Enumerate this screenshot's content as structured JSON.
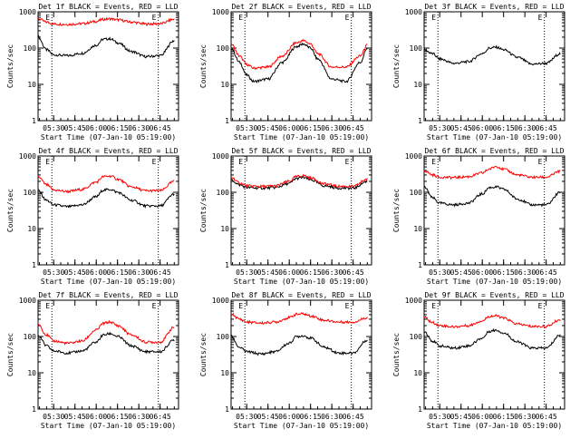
{
  "chart_data": {
    "type": "line",
    "x_ticks": [
      "05:30",
      "05:45",
      "06:00",
      "06:15",
      "06:30",
      "06:45"
    ],
    "ylabel": "Counts/sec",
    "xlabel": "Start Time (07-Jan-10 05:19:00)",
    "yscale": "log",
    "ylim": [
      1,
      1000
    ],
    "y_ticks": [
      "1",
      "10",
      "100",
      "1000"
    ],
    "colors": {
      "events": "#000000",
      "lld": "#ff0000"
    },
    "panels": [
      {
        "title": "Det 1f BLACK = Events, RED = LLD",
        "flags": [
          "E",
          "E"
        ],
        "series": [
          {
            "color": "#000000",
            "x": [
              "05:19",
              "05:25",
              "05:30",
              "05:40",
              "05:50",
              "06:00",
              "06:05",
              "06:10",
              "06:15",
              "06:25",
              "06:35",
              "06:45",
              "06:55"
            ],
            "y": [
              200,
              90,
              65,
              62,
              72,
              120,
              175,
              180,
              140,
              80,
              58,
              62,
              160
            ]
          },
          {
            "color": "#ff0000",
            "x": [
              "05:19",
              "05:25",
              "05:30",
              "05:40",
              "05:50",
              "06:00",
              "06:05",
              "06:10",
              "06:15",
              "06:25",
              "06:35",
              "06:45",
              "06:55"
            ],
            "y": [
              650,
              520,
              460,
              450,
              470,
              540,
              620,
              640,
              600,
              520,
              460,
              470,
              620
            ]
          }
        ]
      },
      {
        "title": "Det 2f BLACK = Events, RED = LLD",
        "flags": [
          "E",
          "E"
        ],
        "series": [
          {
            "color": "#000000",
            "x": [
              "05:19",
              "05:25",
              "05:30",
              "05:35",
              "05:45",
              "05:55",
              "06:05",
              "06:10",
              "06:15",
              "06:20",
              "06:30",
              "06:40",
              "06:50",
              "06:55"
            ],
            "y": [
              100,
              40,
              18,
              12,
              14,
              40,
              110,
              130,
              100,
              50,
              14,
              12,
              40,
              100
            ]
          },
          {
            "color": "#ff0000",
            "x": [
              "05:19",
              "05:25",
              "05:30",
              "05:35",
              "05:45",
              "05:55",
              "06:05",
              "06:10",
              "06:15",
              "06:20",
              "06:30",
              "06:40",
              "06:50",
              "06:55"
            ],
            "y": [
              130,
              60,
              35,
              28,
              30,
              60,
              140,
              160,
              130,
              70,
              30,
              30,
              60,
              120
            ]
          }
        ]
      },
      {
        "title": "Det 3f BLACK = Events, RED = LLD",
        "flags": [
          "E",
          "E"
        ],
        "series": [
          {
            "color": "#000000",
            "x": [
              "05:19",
              "05:25",
              "05:30",
              "05:40",
              "05:50",
              "06:00",
              "06:05",
              "06:10",
              "06:15",
              "06:25",
              "06:35",
              "06:45",
              "06:55"
            ],
            "y": [
              90,
              70,
              50,
              38,
              42,
              70,
              100,
              105,
              90,
              55,
              36,
              38,
              70
            ]
          }
        ]
      },
      {
        "title": "Det 4f BLACK = Events, RED = LLD",
        "flags": [
          "E",
          "E"
        ],
        "series": [
          {
            "color": "#000000",
            "x": [
              "05:19",
              "05:25",
              "05:30",
              "05:40",
              "05:50",
              "06:00",
              "06:05",
              "06:10",
              "06:15",
              "06:25",
              "06:35",
              "06:45",
              "06:55"
            ],
            "y": [
              110,
              60,
              45,
              40,
              45,
              75,
              115,
              120,
              100,
              60,
              42,
              42,
              90
            ]
          },
          {
            "color": "#ff0000",
            "x": [
              "05:19",
              "05:25",
              "05:30",
              "05:40",
              "05:50",
              "06:00",
              "06:05",
              "06:10",
              "06:15",
              "06:25",
              "06:35",
              "06:45",
              "06:55"
            ],
            "y": [
              270,
              160,
              115,
              105,
              120,
              190,
              270,
              280,
              230,
              140,
              110,
              110,
              200
            ]
          }
        ]
      },
      {
        "title": "Det 5f BLACK = Events, RED = LLD",
        "flags": [
          "E",
          "E"
        ],
        "series": [
          {
            "color": "#000000",
            "x": [
              "05:19",
              "05:25",
              "05:30",
              "05:40",
              "05:50",
              "06:00",
              "06:05",
              "06:10",
              "06:15",
              "06:25",
              "06:35",
              "06:45",
              "06:55"
            ],
            "y": [
              220,
              160,
              135,
              130,
              135,
              175,
              240,
              255,
              220,
              150,
              130,
              130,
              200
            ]
          },
          {
            "color": "#ff0000",
            "x": [
              "05:19",
              "05:25",
              "05:30",
              "05:40",
              "05:50",
              "06:00",
              "06:05",
              "06:10",
              "06:15",
              "06:25",
              "06:35",
              "06:45",
              "06:55"
            ],
            "y": [
              260,
              180,
              150,
              145,
              150,
              200,
              270,
              290,
              250,
              170,
              145,
              145,
              230
            ]
          }
        ]
      },
      {
        "title": "Det 6f BLACK = Events, RED = LLD",
        "flags": [
          "E",
          "E"
        ],
        "series": [
          {
            "color": "#000000",
            "x": [
              "05:19",
              "05:25",
              "05:30",
              "05:40",
              "05:50",
              "06:00",
              "06:05",
              "06:10",
              "06:15",
              "06:25",
              "06:35",
              "06:45",
              "06:55"
            ],
            "y": [
              140,
              70,
              50,
              45,
              50,
              90,
              135,
              140,
              120,
              65,
              45,
              45,
              100
            ]
          },
          {
            "color": "#ff0000",
            "x": [
              "05:19",
              "05:25",
              "05:30",
              "05:40",
              "05:50",
              "06:00",
              "06:05",
              "06:10",
              "06:15",
              "06:25",
              "06:35",
              "06:45",
              "06:55"
            ],
            "y": [
              400,
              300,
              260,
              255,
              270,
              340,
              440,
              520,
              430,
              300,
              260,
              260,
              380
            ]
          }
        ]
      },
      {
        "title": "Det 7f BLACK = Events, RED = LLD",
        "flags": [
          "E",
          "E"
        ],
        "series": [
          {
            "color": "#000000",
            "x": [
              "05:19",
              "05:25",
              "05:30",
              "05:40",
              "05:50",
              "06:00",
              "06:05",
              "06:10",
              "06:15",
              "06:25",
              "06:35",
              "06:45",
              "06:55"
            ],
            "y": [
              110,
              55,
              40,
              35,
              40,
              70,
              110,
              120,
              100,
              55,
              38,
              38,
              80
            ]
          },
          {
            "color": "#ff0000",
            "x": [
              "05:19",
              "05:25",
              "05:30",
              "05:40",
              "05:50",
              "06:00",
              "06:05",
              "06:10",
              "06:15",
              "06:25",
              "06:35",
              "06:45",
              "06:55"
            ],
            "y": [
              220,
              110,
              75,
              65,
              75,
              150,
              230,
              250,
              200,
              110,
              70,
              70,
              180
            ]
          }
        ]
      },
      {
        "title": "Det 8f BLACK = Events, RED = LLD",
        "flags": [
          "E",
          "E"
        ],
        "series": [
          {
            "color": "#000000",
            "x": [
              "05:19",
              "05:25",
              "05:30",
              "05:40",
              "05:50",
              "06:00",
              "06:05",
              "06:10",
              "06:15",
              "06:25",
              "06:35",
              "06:45",
              "06:55"
            ],
            "y": [
              100,
              50,
              38,
              33,
              38,
              65,
              100,
              105,
              90,
              50,
              35,
              35,
              80
            ]
          },
          {
            "color": "#ff0000",
            "x": [
              "05:19",
              "05:25",
              "05:30",
              "05:40",
              "05:50",
              "06:00",
              "06:05",
              "06:10",
              "06:15",
              "06:25",
              "06:35",
              "06:45",
              "06:55"
            ],
            "y": [
              420,
              300,
              250,
              235,
              250,
              330,
              410,
              420,
              370,
              280,
              250,
              250,
              330
            ]
          }
        ]
      },
      {
        "title": "Det 9f BLACK = Events, RED = LLD",
        "flags": [
          "E",
          "E"
        ],
        "series": [
          {
            "color": "#000000",
            "x": [
              "05:19",
              "05:25",
              "05:30",
              "05:40",
              "05:50",
              "06:00",
              "06:05",
              "06:10",
              "06:15",
              "06:25",
              "06:35",
              "06:45",
              "06:55"
            ],
            "y": [
              140,
              75,
              55,
              48,
              55,
              90,
              140,
              150,
              125,
              70,
              48,
              48,
              110
            ]
          },
          {
            "color": "#ff0000",
            "x": [
              "05:19",
              "05:25",
              "05:30",
              "05:40",
              "05:50",
              "06:00",
              "06:05",
              "06:10",
              "06:15",
              "06:25",
              "06:35",
              "06:45",
              "06:55"
            ],
            "y": [
              340,
              240,
              200,
              185,
              200,
              270,
              360,
              370,
              320,
              220,
              190,
              190,
              290
            ]
          }
        ]
      }
    ]
  }
}
